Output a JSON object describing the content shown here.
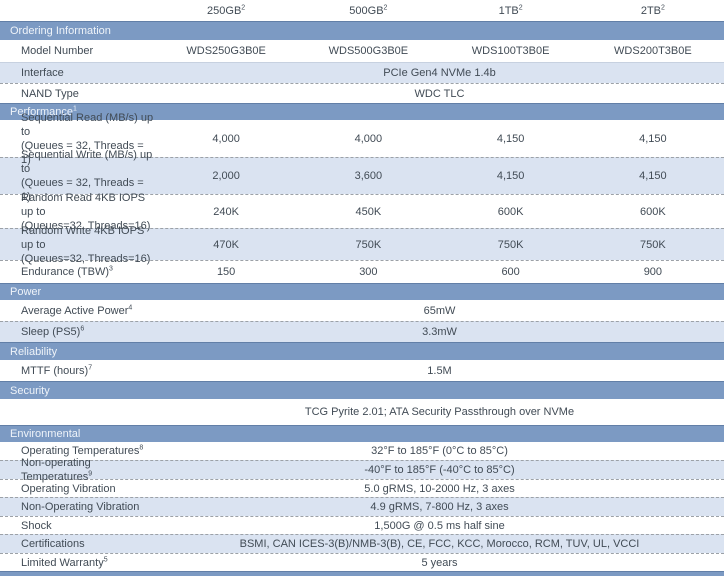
{
  "colors": {
    "section_bar_bg": "#7C9AC3",
    "section_bar_text": "#EEF3F9",
    "shaded_row_bg": "#DAE3F1",
    "body_text": "#414B55",
    "dashed_separator": "#9CA1A7",
    "solid_separator": "#C7D1E0",
    "page_bg": "#ffffff"
  },
  "table": {
    "rows": [
      {
        "type": "colheader",
        "h": 21,
        "shade": false,
        "border": "none",
        "cells": [
          {
            "text": "250GB",
            "sup": "2"
          },
          {
            "text": "500GB",
            "sup": "2"
          },
          {
            "text": "1TB",
            "sup": "2"
          },
          {
            "text": "2TB",
            "sup": "2"
          }
        ]
      },
      {
        "type": "bar",
        "h": 19,
        "label": "Ordering Information",
        "sup": ""
      },
      {
        "type": "data",
        "h": 22,
        "shade": false,
        "border": "none",
        "label": "Model Number",
        "sup": "",
        "label2": "",
        "cells": [
          "WDS250G3B0E",
          "WDS500G3B0E",
          "WDS100T3B0E",
          "WDS200T3B0E"
        ]
      },
      {
        "type": "span",
        "h": 21,
        "shade": true,
        "border": "solid",
        "label": "Interface",
        "sup": "",
        "value": "PCIe Gen4 NVMe 1.4b"
      },
      {
        "type": "span",
        "h": 20,
        "shade": false,
        "border": "dashed",
        "label": "NAND Type",
        "sup": "",
        "value": "WDC TLC"
      },
      {
        "type": "bar",
        "h": 17,
        "label": "Performance",
        "sup": "1"
      },
      {
        "type": "data",
        "h": 37,
        "shade": false,
        "border": "none",
        "label": "Sequential Read (MB/s) up to",
        "sup": "",
        "label2": "(Queues = 32, Threads = 1)",
        "cells": [
          "4,000",
          "4,000",
          "4,150",
          "4,150"
        ]
      },
      {
        "type": "data",
        "h": 37,
        "shade": true,
        "border": "dashed",
        "label": "Sequential Write (MB/s) up to",
        "sup": "",
        "label2": "(Queues = 32, Threads = 1)",
        "cells": [
          "2,000",
          "3,600",
          "4,150",
          "4,150"
        ]
      },
      {
        "type": "data",
        "h": 34,
        "shade": false,
        "border": "dashed",
        "label": "Random Read 4KB IOPS up to",
        "sup": "",
        "label2": "(Queues=32, Threads=16)",
        "cells": [
          "240K",
          "450K",
          "600K",
          "600K"
        ]
      },
      {
        "type": "data",
        "h": 32,
        "shade": true,
        "border": "dashed",
        "label": "Random Write 4KB IOPS up to",
        "sup": "",
        "label2": "(Queues=32, Threads=16)",
        "cells": [
          "470K",
          "750K",
          "750K",
          "750K"
        ]
      },
      {
        "type": "data",
        "h": 23,
        "shade": false,
        "border": "dashed",
        "label": "Endurance (TBW)",
        "sup": "3",
        "label2": "",
        "cells": [
          "150",
          "300",
          "600",
          "900"
        ]
      },
      {
        "type": "bar",
        "h": 17,
        "label": "Power",
        "sup": ""
      },
      {
        "type": "span",
        "h": 21,
        "shade": false,
        "border": "none",
        "label": "Average Active Power",
        "sup": "4",
        "value": "65mW"
      },
      {
        "type": "span",
        "h": 21,
        "shade": true,
        "border": "dashed",
        "label": "Sleep (PS5)",
        "sup": "6",
        "value": "3.3mW"
      },
      {
        "type": "bar",
        "h": 18,
        "label": "Reliability",
        "sup": ""
      },
      {
        "type": "span",
        "h": 21,
        "shade": false,
        "border": "none",
        "label": "MTTF (hours)",
        "sup": "7",
        "value": "1.5M"
      },
      {
        "type": "bar",
        "h": 18,
        "label": "Security",
        "sup": ""
      },
      {
        "type": "span",
        "h": 26,
        "shade": false,
        "border": "none",
        "label": "",
        "sup": "",
        "value": "TCG Pyrite 2.01; ATA Security Passthrough over NVMe"
      },
      {
        "type": "bar",
        "h": 17,
        "label": "Environmental",
        "sup": ""
      },
      {
        "type": "span",
        "h": 18,
        "shade": false,
        "border": "none",
        "label": "Operating Temperatures",
        "sup": "8",
        "value": "32°F to 185°F (0°C to 85°C)"
      },
      {
        "type": "span",
        "h": 19,
        "shade": true,
        "border": "dashed",
        "label": "Non-operating Temperatures",
        "sup": "9",
        "value": "-40°F to 185°F (-40°C to 85°C)"
      },
      {
        "type": "span",
        "h": 18,
        "shade": false,
        "border": "dashed",
        "label": "Operating Vibration",
        "sup": "",
        "value": "5.0 gRMS, 10-2000 Hz, 3 axes"
      },
      {
        "type": "span",
        "h": 19,
        "shade": true,
        "border": "dashed",
        "label": "Non-Operating Vibration",
        "sup": "",
        "value": "4.9 gRMS, 7-800 Hz, 3 axes"
      },
      {
        "type": "span",
        "h": 18,
        "shade": false,
        "border": "dashed",
        "label": "Shock",
        "sup": "",
        "value": "1,500G @ 0.5 ms half sine"
      },
      {
        "type": "span",
        "h": 19,
        "shade": true,
        "border": "dashed",
        "label": "Certifications",
        "sup": "",
        "value": "BSMI, CAN ICES-3(B)/NMB-3(B), CE, FCC, KCC, Morocco, RCM, TUV, UL, VCCI"
      },
      {
        "type": "span",
        "h": 18,
        "shade": false,
        "border": "dashed",
        "label": "Limited Warranty",
        "sup": "5",
        "value": "5 years"
      },
      {
        "type": "bar",
        "h": 5,
        "label": "",
        "sup": ""
      }
    ]
  }
}
